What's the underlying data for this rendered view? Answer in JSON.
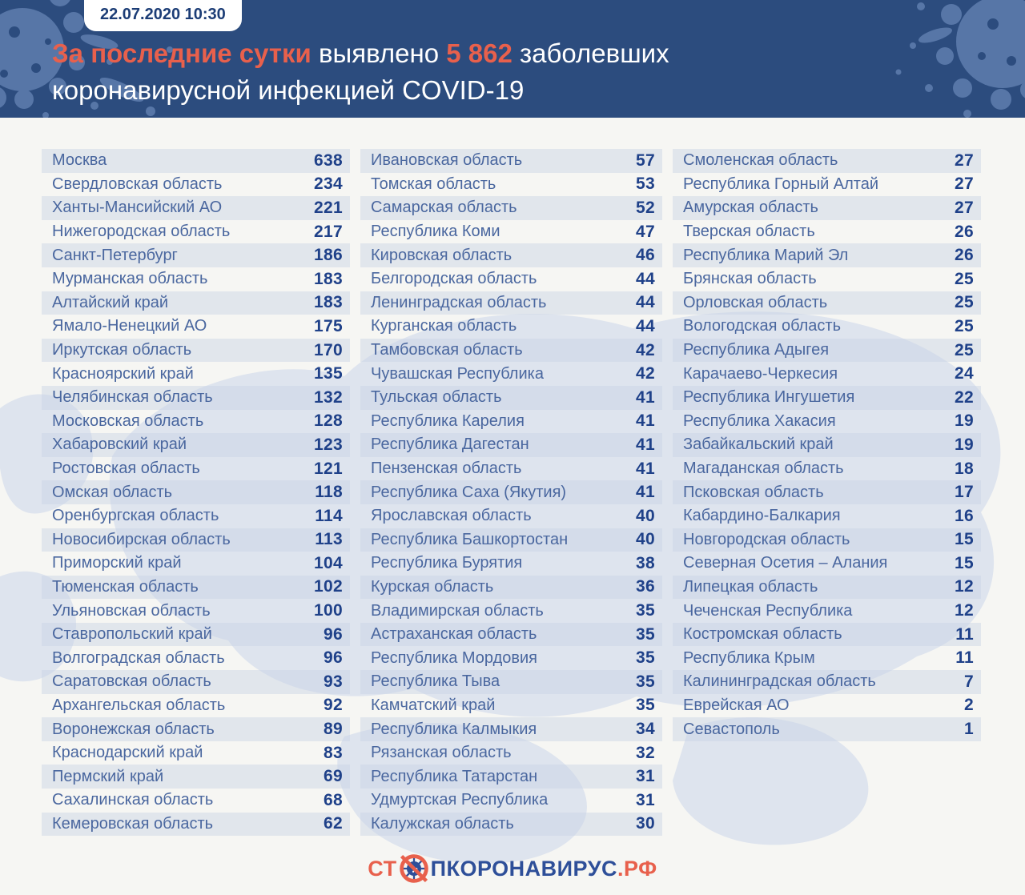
{
  "header": {
    "badge_text": "22.07.2020 10:30",
    "title": {
      "highlight_lead": "За последние сутки",
      "mid": " выявлено ",
      "count": "5 862",
      "tail": " заболевших",
      "line2": "коронавирусной инфекцией COVID-19"
    }
  },
  "footer": {
    "logo_st": "СТ",
    "logo_koronavirus": "ПКОРОНАВИРУС",
    "logo_rf": ".РФ"
  },
  "colors": {
    "header_bg": "#2c4c7e",
    "accent_orange": "#e8604c",
    "region_text": "#4a679f",
    "value_text": "#1f4189",
    "logo_blue": "#2e4f99",
    "splat_blue": "#5b7aab",
    "map_fill": "#dee4ee",
    "page_bg": "#f6f6f3"
  },
  "chart_data": {
    "type": "table",
    "title": "За последние сутки выявлено 5 862 заболевших коронавирусной инфекцией COVID-19",
    "timestamp": "22.07.2020 10:30",
    "total_new_cases": 5862,
    "columns": [
      {
        "rows": [
          [
            "Москва",
            638
          ],
          [
            "Свердловская область",
            234
          ],
          [
            "Ханты-Мансийский АО",
            221
          ],
          [
            "Нижегородская область",
            217
          ],
          [
            "Санкт-Петербург",
            186
          ],
          [
            "Мурманская область",
            183
          ],
          [
            "Алтайский край",
            183
          ],
          [
            "Ямало-Ненецкий АО",
            175
          ],
          [
            "Иркутская область",
            170
          ],
          [
            "Красноярский край",
            135
          ],
          [
            "Челябинская область",
            132
          ],
          [
            "Московская область",
            128
          ],
          [
            "Хабаровский край",
            123
          ],
          [
            "Ростовская область",
            121
          ],
          [
            "Омская область",
            118
          ],
          [
            "Оренбургская область",
            114
          ],
          [
            "Новосибирская область",
            113
          ],
          [
            "Приморский край",
            104
          ],
          [
            "Тюменская область",
            102
          ],
          [
            "Ульяновская область",
            100
          ],
          [
            "Ставропольский край",
            96
          ],
          [
            "Волгоградская область",
            96
          ],
          [
            "Саратовская область",
            93
          ],
          [
            "Архангельская область",
            92
          ],
          [
            "Воронежская область",
            89
          ],
          [
            "Краснодарский край",
            83
          ],
          [
            "Пермский край",
            69
          ],
          [
            "Сахалинская область",
            68
          ],
          [
            "Кемеровская область",
            62
          ]
        ]
      },
      {
        "rows": [
          [
            "Ивановская область",
            57
          ],
          [
            "Томская область",
            53
          ],
          [
            "Самарская область",
            52
          ],
          [
            "Республика Коми",
            47
          ],
          [
            "Кировская область",
            46
          ],
          [
            "Белгородская область",
            44
          ],
          [
            "Ленинградская область",
            44
          ],
          [
            "Курганская область",
            44
          ],
          [
            "Тамбовская область",
            42
          ],
          [
            "Чувашская Республика",
            42
          ],
          [
            "Тульская область",
            41
          ],
          [
            "Республика Карелия",
            41
          ],
          [
            "Республика Дагестан",
            41
          ],
          [
            "Пензенская область",
            41
          ],
          [
            "Республика Саха (Якутия)",
            41
          ],
          [
            "Ярославская область",
            40
          ],
          [
            "Республика Башкортостан",
            40
          ],
          [
            "Республика Бурятия",
            38
          ],
          [
            "Курская область",
            36
          ],
          [
            "Владимирская область",
            35
          ],
          [
            "Астраханская область",
            35
          ],
          [
            "Республика Мордовия",
            35
          ],
          [
            "Республика Тыва",
            35
          ],
          [
            "Камчатский край",
            35
          ],
          [
            "Республика Калмыкия",
            34
          ],
          [
            "Рязанская область",
            32
          ],
          [
            "Республика Татарстан",
            31
          ],
          [
            "Удмуртская Республика",
            31
          ],
          [
            "Калужская область",
            30
          ]
        ]
      },
      {
        "rows": [
          [
            "Смоленская область",
            27
          ],
          [
            "Республика Горный Алтай",
            27
          ],
          [
            "Амурская область",
            27
          ],
          [
            "Тверская область",
            26
          ],
          [
            "Республика Марий Эл",
            26
          ],
          [
            "Брянская область",
            25
          ],
          [
            "Орловская область",
            25
          ],
          [
            "Вологодская область",
            25
          ],
          [
            "Республика Адыгея",
            25
          ],
          [
            "Карачаево-Черкесия",
            24
          ],
          [
            "Республика Ингушетия",
            22
          ],
          [
            "Республика Хакасия",
            19
          ],
          [
            "Забайкальский край",
            19
          ],
          [
            "Магаданская область",
            18
          ],
          [
            "Псковская область",
            17
          ],
          [
            "Кабардино-Балкария",
            16
          ],
          [
            "Новгородская область",
            15
          ],
          [
            "Северная Осетия – Алания",
            15
          ],
          [
            "Липецкая область",
            12
          ],
          [
            "Чеченская Республика",
            12
          ],
          [
            "Костромская область",
            11
          ],
          [
            "Республика Крым",
            11
          ],
          [
            "Калининградская область",
            7
          ],
          [
            "Еврейская АО",
            2
          ],
          [
            "Севастополь",
            1
          ]
        ]
      }
    ]
  }
}
